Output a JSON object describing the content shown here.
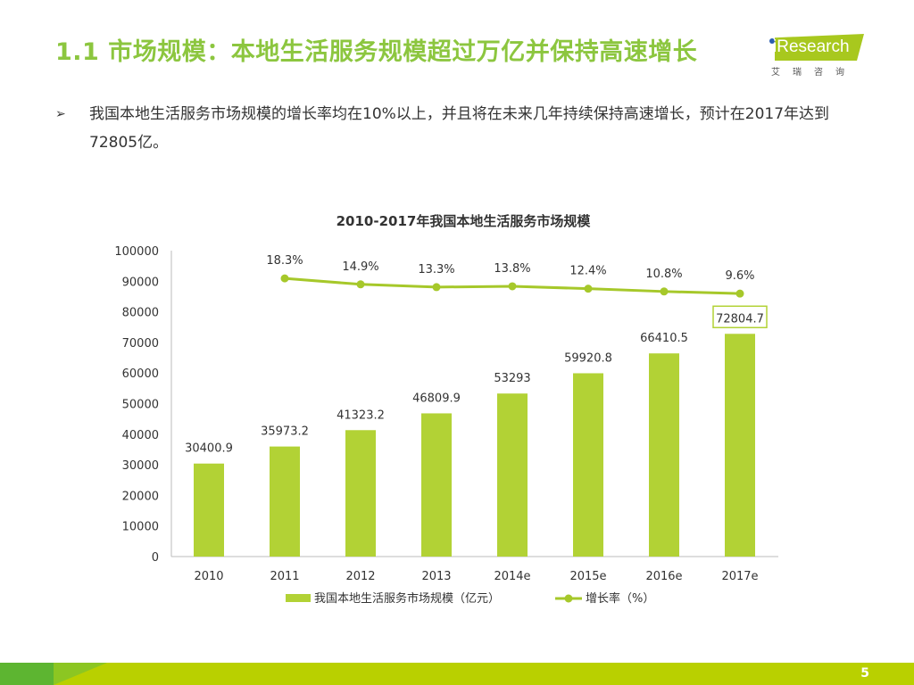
{
  "slide": {
    "title": "1.1 市场规模：本地生活服务规模超过万亿并保持高速增长",
    "logo_text": "iResearch",
    "logo_cn": "艾瑞咨询",
    "bullet_mark": "➢",
    "bullet_text": "我国本地生活服务市场规模的增长率均在10%以上，并且将在未来几年持续保持高速增长，预计在2017年达到72805亿。",
    "page_number": "5"
  },
  "chart_data": {
    "type": "bar",
    "title": "2010-2017年我国本地生活服务市场规模",
    "categories": [
      "2010",
      "2011",
      "2012",
      "2013",
      "2014e",
      "2015e",
      "2016e",
      "2017e"
    ],
    "series": [
      {
        "name": "我国本地生活服务市场规模（亿元）",
        "type": "bar",
        "color": "#b2d235",
        "values": [
          30400.9,
          35973.2,
          41323.2,
          46809.9,
          53293,
          59920.8,
          66410.5,
          72804.7
        ],
        "labels": [
          "30400.9",
          "35973.2",
          "41323.2",
          "46809.9",
          "53293",
          "59920.8",
          "66410.5",
          "72804.7"
        ]
      },
      {
        "name": "增长率（%）",
        "type": "line",
        "color": "#a6c82a",
        "axis": "secondary",
        "values": [
          null,
          18.3,
          14.9,
          13.3,
          13.8,
          12.4,
          10.8,
          9.6
        ],
        "labels": [
          "",
          "18.3%",
          "14.9%",
          "13.3%",
          "13.8%",
          "12.4%",
          "10.8%",
          "9.6%"
        ]
      }
    ],
    "ylim": [
      0,
      100000
    ],
    "yticks": [
      "0",
      "10000",
      "20000",
      "30000",
      "40000",
      "50000",
      "60000",
      "70000",
      "80000",
      "90000",
      "100000"
    ],
    "y2lim": [
      -141,
      34.2
    ],
    "highlighted_label": "72804.7",
    "legend_placement": "bottom",
    "grid": false
  }
}
